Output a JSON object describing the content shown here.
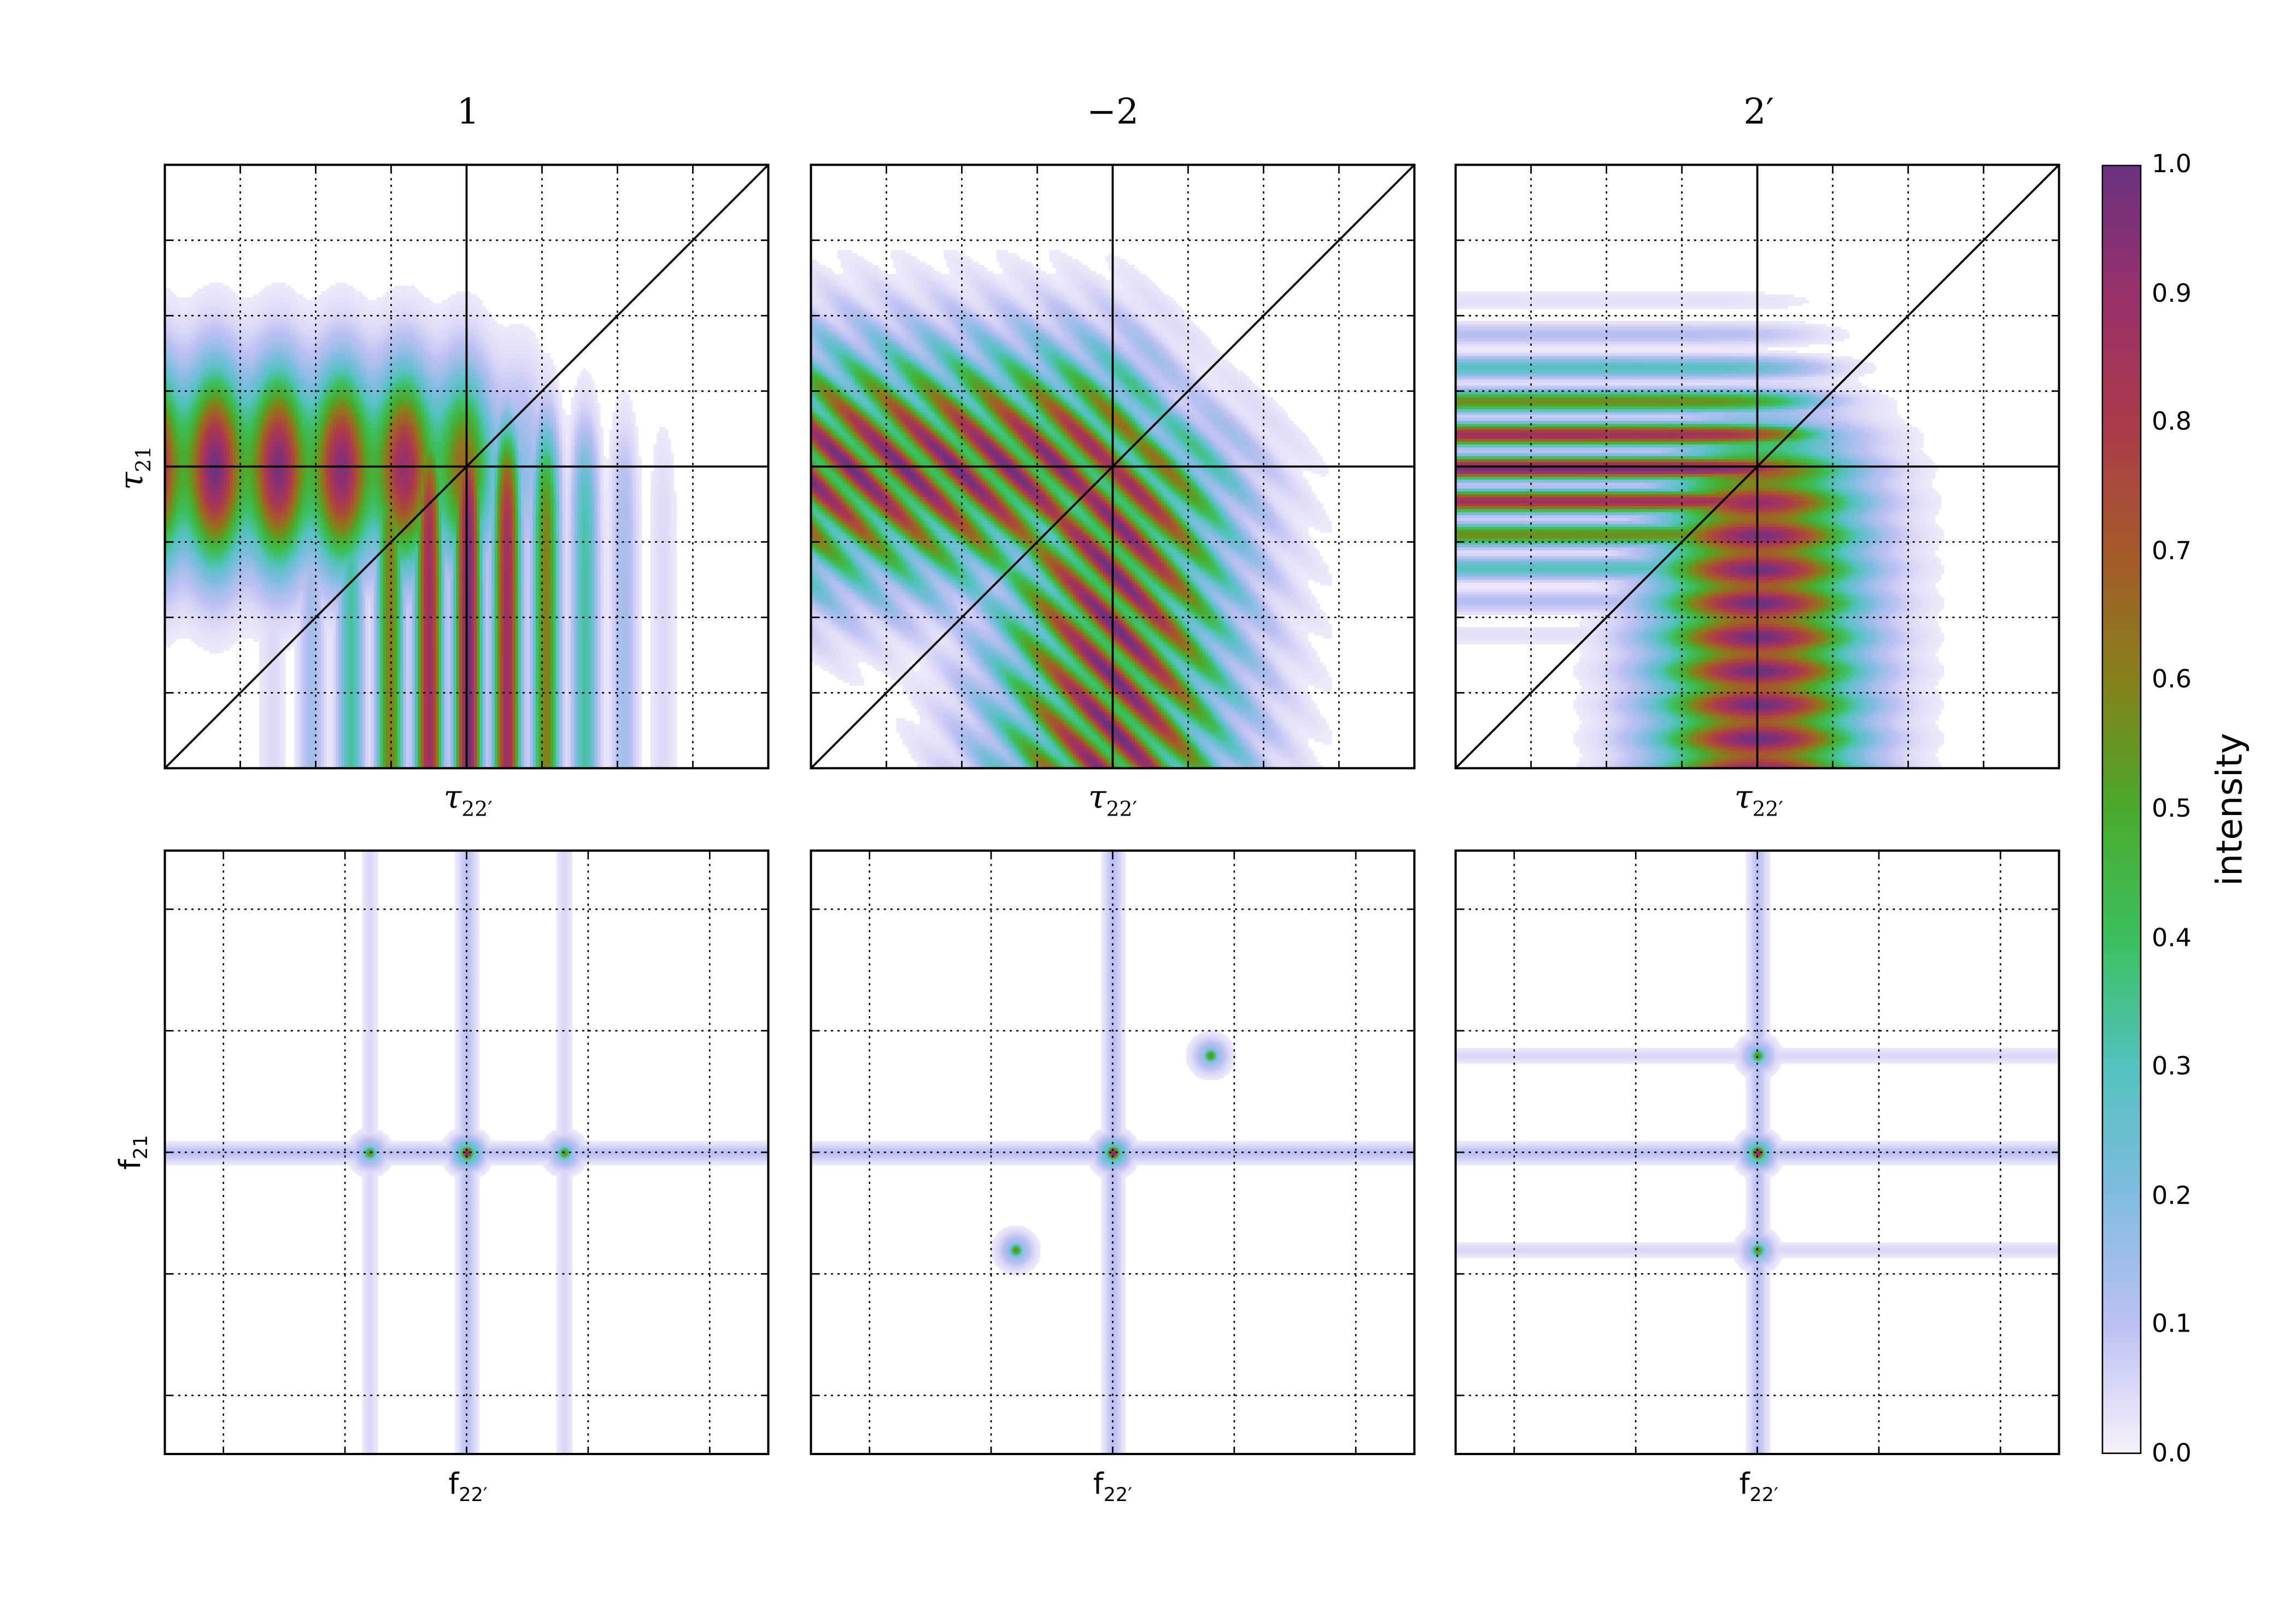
{
  "chart_data": [
    {
      "type": "heatmap",
      "panel": "top-1",
      "title": "1",
      "xlabel": {
        "symbol": "τ",
        "sub": "22′"
      },
      "ylabel": {
        "symbol": "τ",
        "sub": "21"
      },
      "grid": true,
      "reference_lines": [
        "horizontal",
        "vertical",
        "diagonal"
      ]
    },
    {
      "type": "heatmap",
      "panel": "top-2",
      "title": "−2",
      "xlabel": {
        "symbol": "τ",
        "sub": "22′"
      },
      "ylabel": null,
      "grid": true,
      "reference_lines": [
        "horizontal",
        "vertical",
        "diagonal"
      ]
    },
    {
      "type": "heatmap",
      "panel": "top-3",
      "title": "2′",
      "xlabel": {
        "symbol": "τ",
        "sub": "22′"
      },
      "ylabel": null,
      "grid": true,
      "reference_lines": [
        "horizontal",
        "vertical",
        "diagonal"
      ]
    },
    {
      "type": "heatmap",
      "panel": "bottom-1",
      "xlabel": {
        "symbol": "f",
        "sub": "22′"
      },
      "ylabel": {
        "symbol": "f",
        "sub": "21"
      },
      "grid": true
    },
    {
      "type": "heatmap",
      "panel": "bottom-2",
      "xlabel": {
        "symbol": "f",
        "sub": "22′"
      },
      "ylabel": null,
      "grid": true
    },
    {
      "type": "heatmap",
      "panel": "bottom-3",
      "xlabel": {
        "symbol": "f",
        "sub": "22′"
      },
      "ylabel": null,
      "grid": true
    }
  ],
  "colorbar": {
    "label": "intensity",
    "range": [
      0.0,
      1.0
    ],
    "ticks": [
      "0.0",
      "0.1",
      "0.2",
      "0.3",
      "0.4",
      "0.5",
      "0.6",
      "0.7",
      "0.8",
      "0.9",
      "1.0"
    ],
    "colormap": [
      "#f7f0fb",
      "#bcc0f2",
      "#80bce0",
      "#52c2bd",
      "#3cbf5e",
      "#4aaa2c",
      "#85801a",
      "#a55a2a",
      "#ab3a4c",
      "#98306a",
      "#6a3280"
    ]
  }
}
